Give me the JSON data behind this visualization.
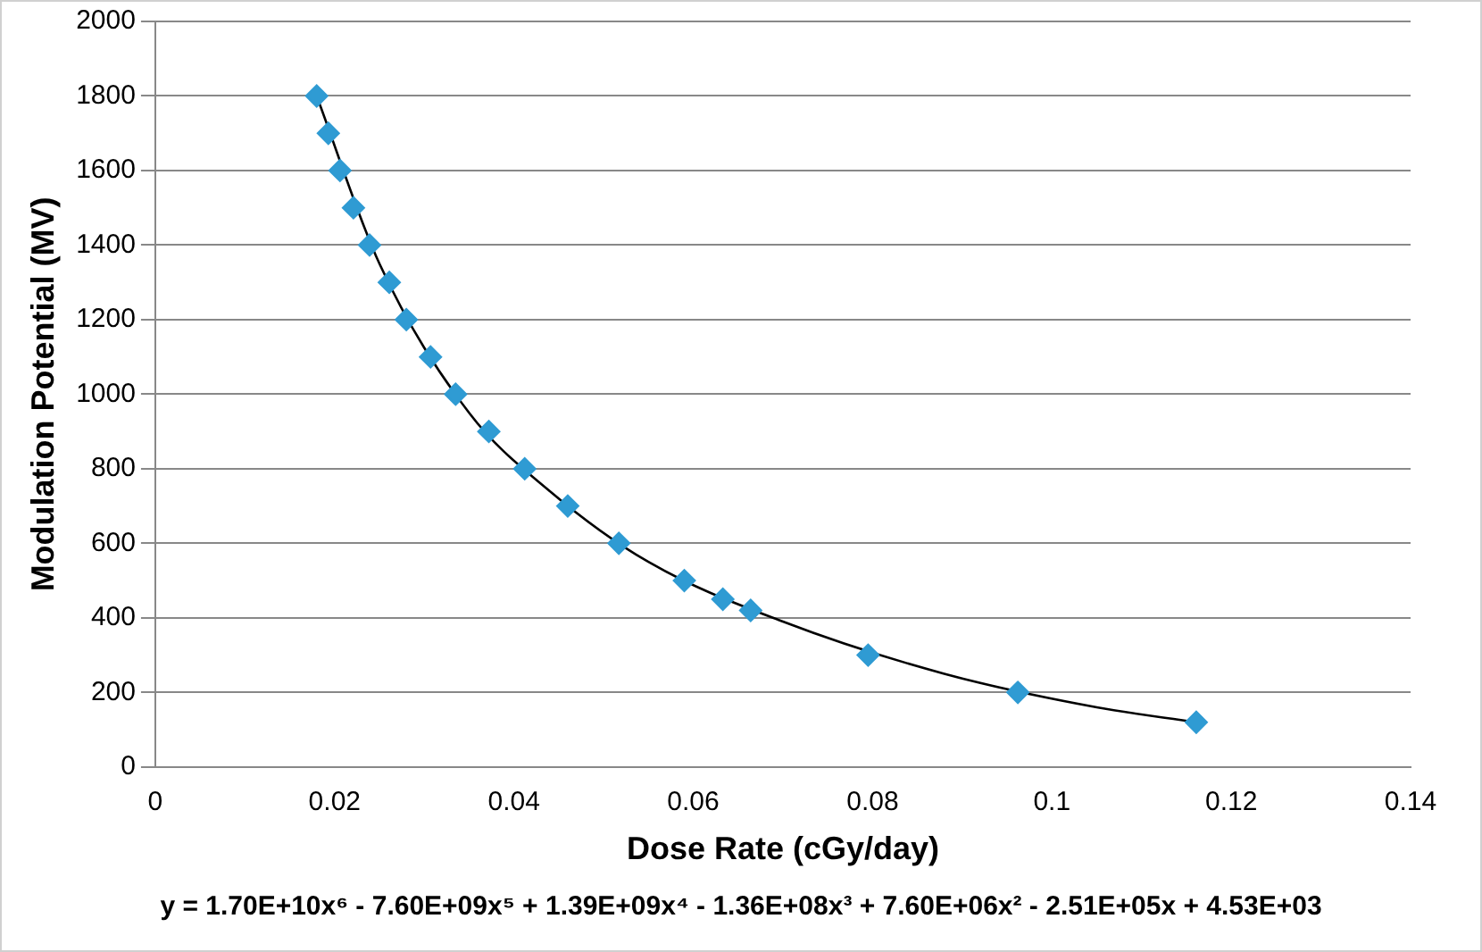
{
  "chart_data": {
    "type": "scatter",
    "xlabel": "Dose Rate (cGy/day)",
    "ylabel": "Modulation Potential (MV)",
    "annotations": [
      "y = 1.70E+10x⁶ - 7.60E+09x⁵ + 1.39E+09x⁴ - 1.36E+08x³ + 7.60E+06x² - 2.51E+05x + 4.53E+03"
    ],
    "xlim": [
      0,
      0.14
    ],
    "xticks": [
      0,
      0.02,
      0.04,
      0.06,
      0.08,
      0.1,
      0.12,
      0.14
    ],
    "ylim": [
      0,
      2000
    ],
    "yticks": [
      0,
      200,
      400,
      600,
      800,
      1000,
      1200,
      1400,
      1600,
      1800,
      2000
    ],
    "grid": "y",
    "legend": false,
    "marker": "diamond",
    "series": [
      {
        "type": "scatter",
        "color": "#2f9bd3",
        "x": [
          0.018,
          0.0193,
          0.0206,
          0.0221,
          0.0239,
          0.0261,
          0.028,
          0.0307,
          0.0335,
          0.0372,
          0.0412,
          0.046,
          0.0517,
          0.059,
          0.0633,
          0.0664,
          0.0795,
          0.0962,
          0.1161
        ],
        "values": [
          1800,
          1700,
          1600,
          1500,
          1400,
          1300,
          1200,
          1100,
          1000,
          900,
          800,
          700,
          600,
          500,
          450,
          420,
          300,
          200,
          120
        ]
      },
      {
        "type": "line",
        "color": "#000000",
        "line_style": "solid",
        "marker": "none",
        "x": [
          0.018,
          0.025,
          0.035,
          0.044,
          0.055,
          0.07,
          0.088,
          0.105,
          0.1161
        ],
        "values": [
          1800,
          1350,
          950,
          740,
          550,
          390,
          250,
          160,
          120
        ]
      }
    ]
  }
}
